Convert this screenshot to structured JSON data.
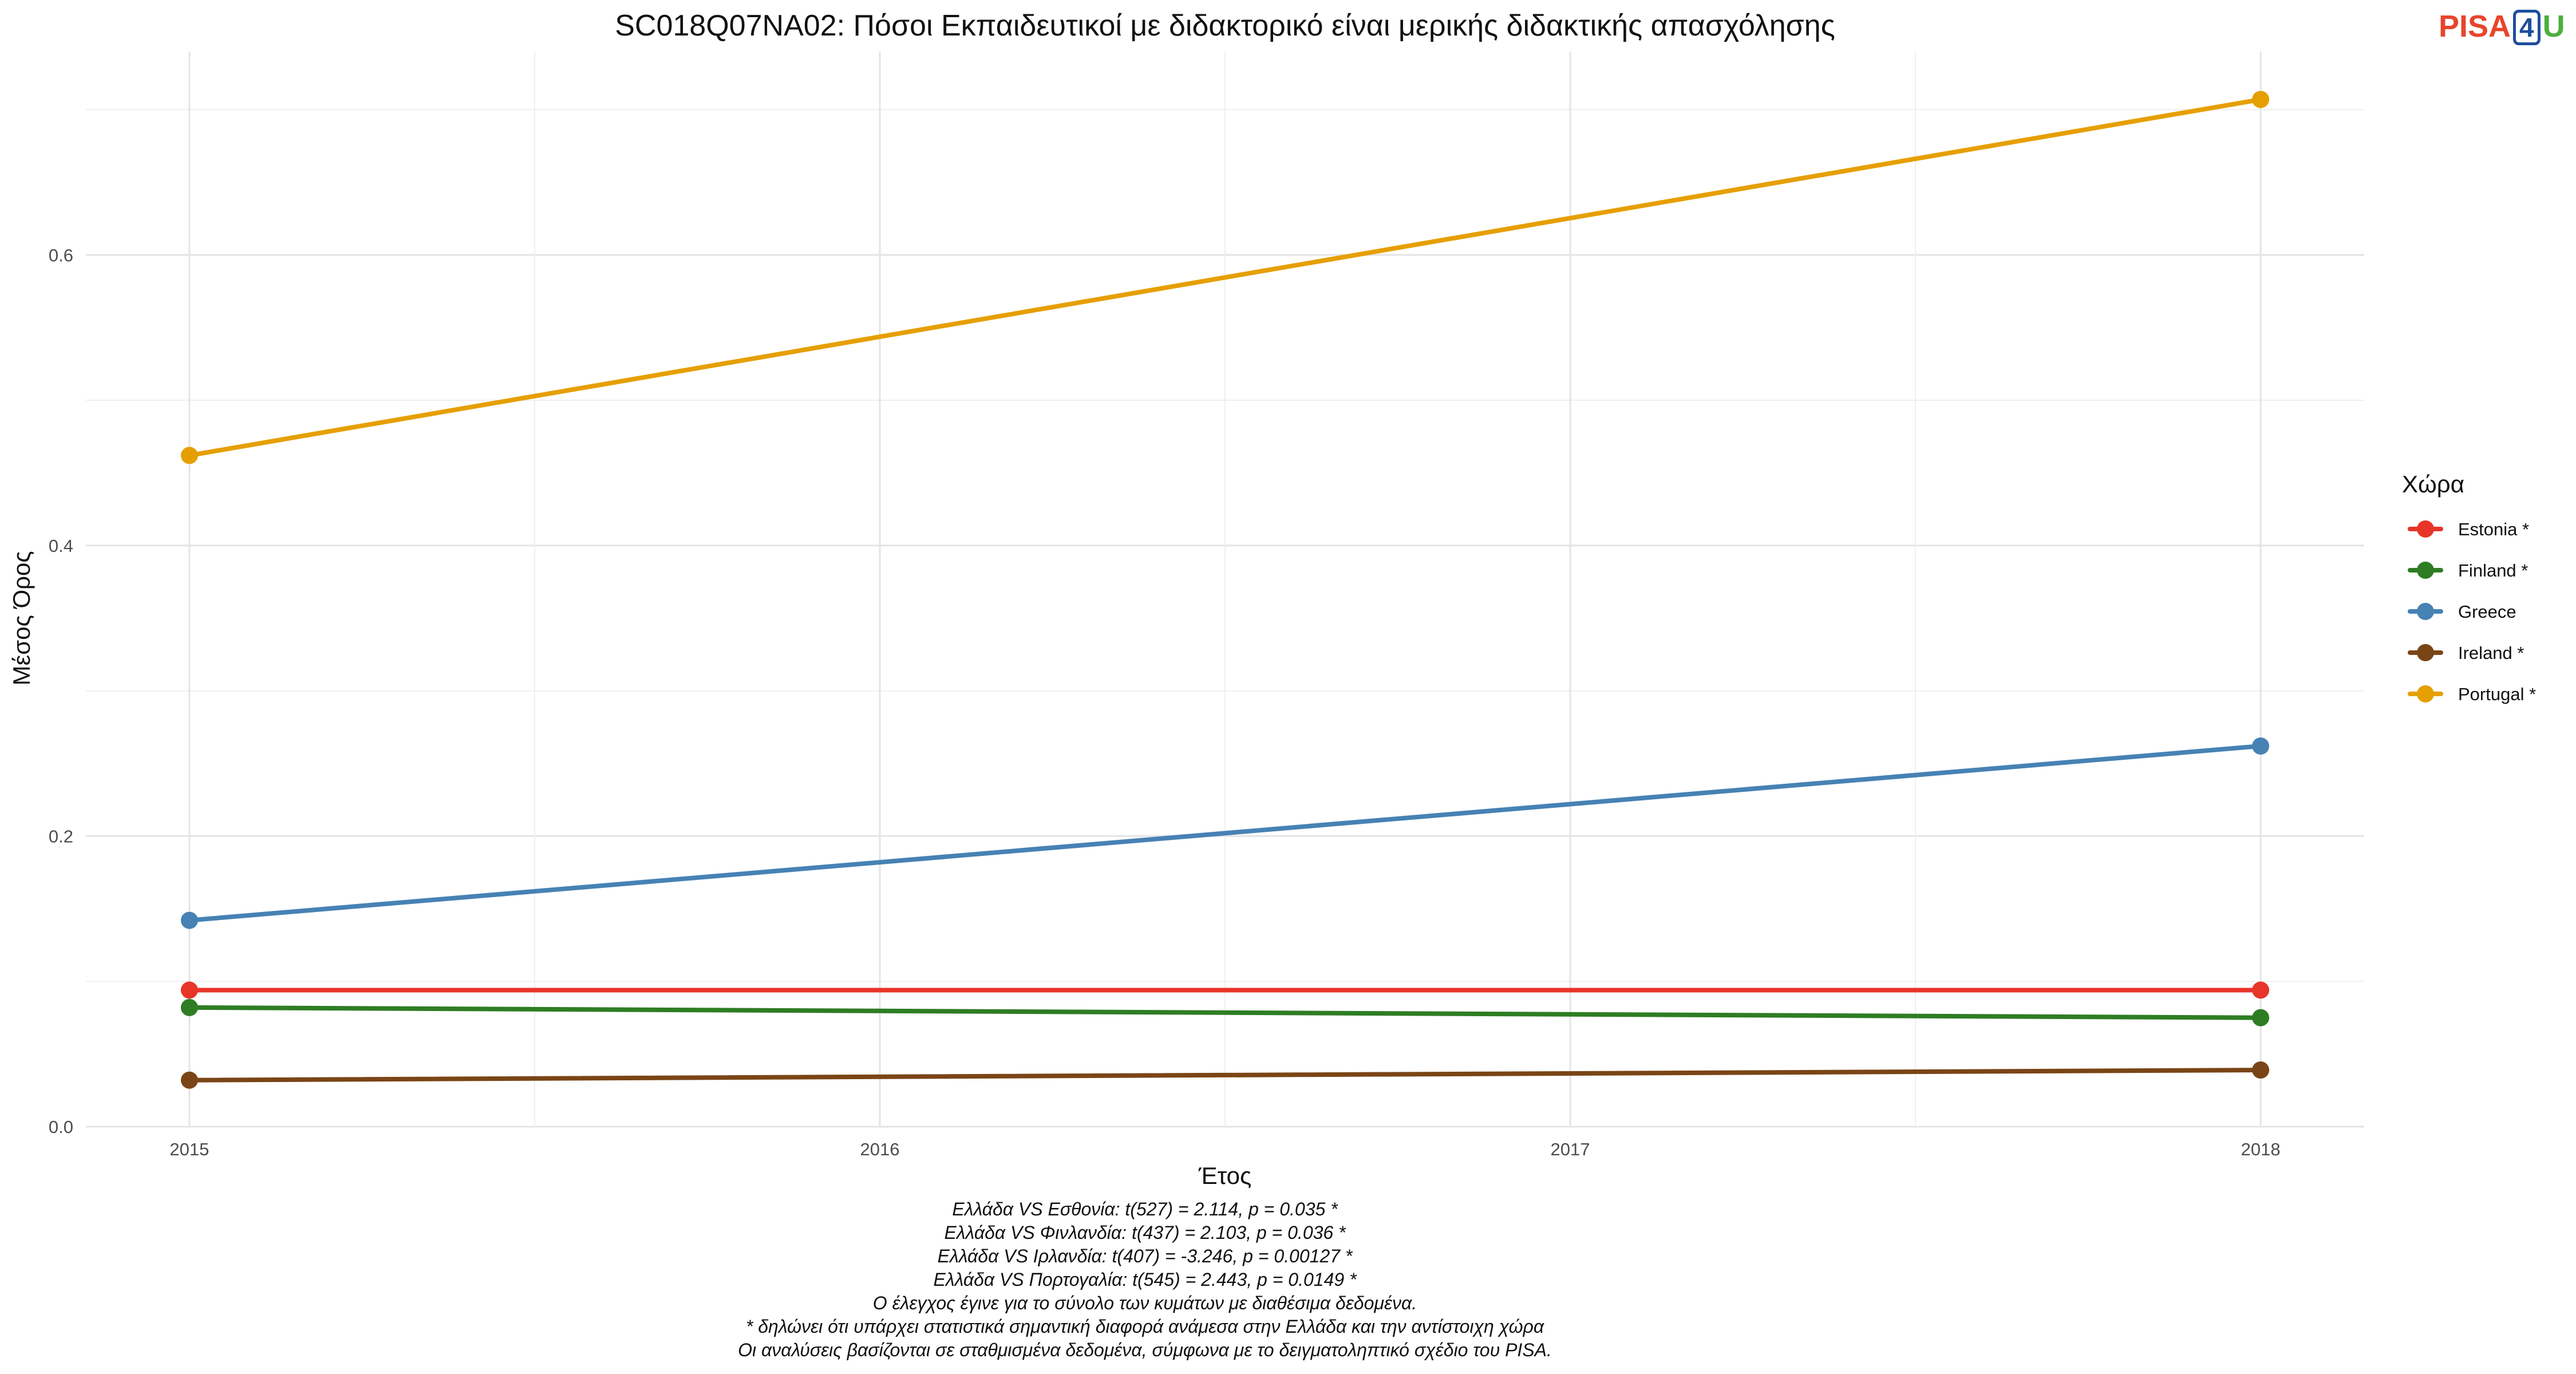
{
  "chart_data": {
    "type": "line",
    "title": "SC018Q07NA02: Πόσοι Εκπαιδευτικοί με διδακτορικό είναι μερικής διδακτικής απασχόλησης",
    "xlabel": "Έτος",
    "ylabel": "Μέσος Όρος",
    "x": [
      2015,
      2018
    ],
    "xticks": [
      2015,
      2016,
      2017,
      2018
    ],
    "xtick_labels": [
      "2015",
      "2016",
      "2017",
      "2018"
    ],
    "xlim": [
      2014.85,
      2018.15
    ],
    "ylim": [
      0.0,
      0.74
    ],
    "yticks": [
      0.0,
      0.2,
      0.4,
      0.6
    ],
    "ytick_labels": [
      "0.0",
      "0.2",
      "0.4",
      "0.6"
    ],
    "grid": true,
    "legend": {
      "title": "Χώρα",
      "position": "right"
    },
    "series": [
      {
        "name": "Estonia *",
        "color": "#e8352a",
        "values": [
          0.094,
          0.094
        ]
      },
      {
        "name": "Finland *",
        "color": "#2e7d23",
        "values": [
          0.082,
          0.075
        ]
      },
      {
        "name": "Greece",
        "color": "#4682b4",
        "values": [
          0.142,
          0.262
        ]
      },
      {
        "name": "Ireland *",
        "color": "#7a4516",
        "values": [
          0.032,
          0.039
        ]
      },
      {
        "name": "Portugal *",
        "color": "#e69f00",
        "values": [
          0.462,
          0.707
        ]
      }
    ]
  },
  "logo": {
    "part1": "PISA",
    "part2": "4",
    "part3": "U",
    "color1": "#e8452c",
    "color2": "#1f4e9c",
    "color3": "#4caf3b"
  },
  "caption": {
    "lines": [
      "Ελλάδα VS Εσθονία: t(527) = 2.114, p = 0.035 *",
      "Ελλάδα VS Φινλανδία: t(437) = 2.103, p = 0.036 *",
      "Ελλάδα VS Ιρλανδία: t(407) = -3.246, p = 0.00127 *",
      "Ελλάδα VS Πορτογαλία: t(545) = 2.443, p = 0.0149 *",
      "Ο έλεγχος έγινε για το σύνολο των κυμάτων με διαθέσιμα δεδομένα.",
      "* δηλώνει ότι υπάρχει στατιστικά σημαντική διαφορά ανάμεσα στην Ελλάδα και την αντίστοιχη χώρα",
      "Οι αναλύσεις βασίζονται σε σταθμισμένα δεδομένα, σύμφωνα με το δειγματοληπτικό σχέδιο του PISA."
    ]
  }
}
